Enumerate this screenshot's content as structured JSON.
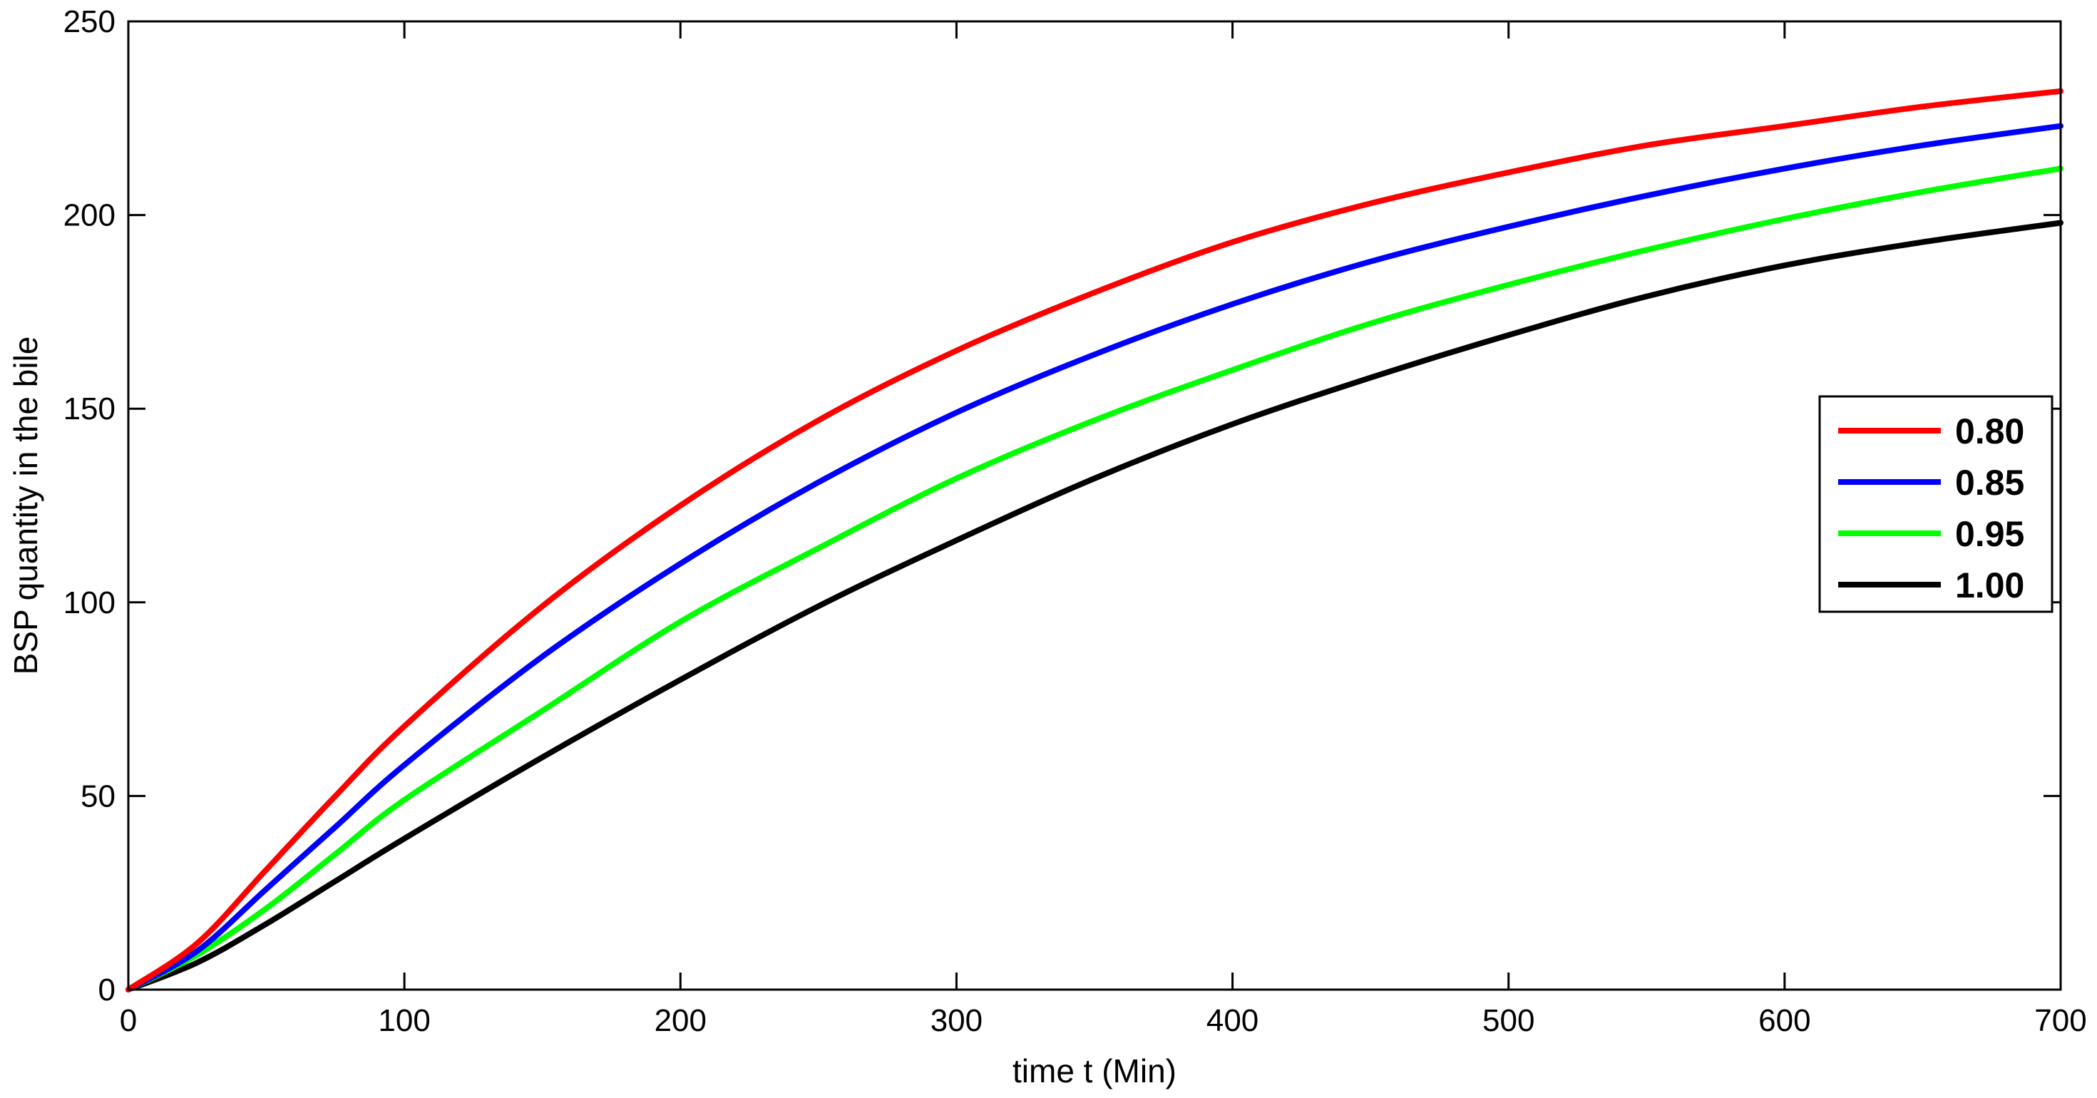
{
  "chart_data": {
    "type": "line",
    "xlabel": "time t (Min)",
    "ylabel": "BSP quantity in the bile",
    "xlim": [
      0,
      700
    ],
    "ylim": [
      0,
      250
    ],
    "xticks": [
      0,
      100,
      200,
      300,
      400,
      500,
      600,
      700
    ],
    "yticks": [
      0,
      50,
      100,
      150,
      200,
      250
    ],
    "xtick_labels": [
      "0",
      "100",
      "200",
      "300",
      "400",
      "500",
      "600",
      "700"
    ],
    "ytick_labels": [
      "0",
      "50",
      "100",
      "150",
      "200",
      "250"
    ],
    "grid": false,
    "legend_position": "right",
    "x": [
      0,
      25,
      50,
      75,
      100,
      150,
      200,
      250,
      300,
      350,
      400,
      450,
      500,
      550,
      600,
      650,
      700
    ],
    "series": [
      {
        "name": "0.80",
        "color": "#ff0000",
        "values": [
          0,
          12,
          31,
          50,
          68,
          99,
          125,
          147,
          165,
          180,
          193,
          203,
          211,
          218,
          223,
          228,
          232
        ]
      },
      {
        "name": "0.85",
        "color": "#0000ff",
        "values": [
          0,
          10,
          26,
          42,
          58,
          86,
          110,
          131,
          149,
          164,
          177,
          188,
          197,
          205,
          212,
          218,
          223
        ]
      },
      {
        "name": "0.95",
        "color": "#00ff00",
        "values": [
          0,
          9,
          21,
          35,
          49,
          72,
          95,
          114,
          132,
          147,
          160,
          172,
          182,
          191,
          199,
          206,
          212
        ]
      },
      {
        "name": "1.00",
        "color": "#000000",
        "values": [
          0,
          7,
          17,
          28,
          39,
          60,
          80,
          99,
          116,
          132,
          146,
          158,
          169,
          179,
          187,
          193,
          198
        ]
      }
    ]
  }
}
